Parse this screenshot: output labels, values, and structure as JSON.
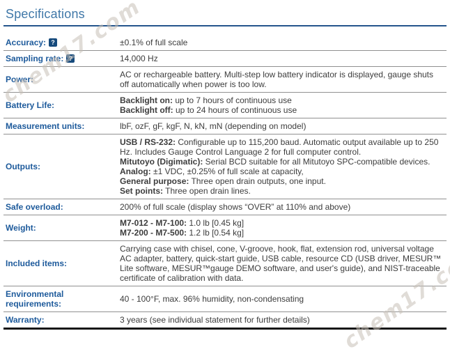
{
  "page": {
    "title": "Specifications"
  },
  "watermark": {
    "text": "chem17.com"
  },
  "help_icon": {
    "glyph": "?"
  },
  "colors": {
    "title_blue": "#4078a8",
    "rule_blue": "#24558c",
    "label_blue": "#1d5a9b",
    "help_icon_blue": "#164a7c",
    "body_text": "#3c3c3c",
    "separator_gray": "#909090",
    "bottom_border_black": "#161616"
  },
  "table": {
    "rows": [
      {
        "label": "Accuracy:",
        "help": true,
        "lines": [
          {
            "bold": "",
            "text": "±0.1% of full scale"
          }
        ]
      },
      {
        "label": "Sampling rate:",
        "help": true,
        "lines": [
          {
            "bold": "",
            "text": "14,000 Hz"
          }
        ]
      },
      {
        "label": "Power:",
        "help": false,
        "lines": [
          {
            "bold": "",
            "text": "AC or rechargeable battery. Multi-step low battery indicator is displayed, gauge shuts off automatically when power is too low."
          }
        ]
      },
      {
        "label": "Battery Life:",
        "help": false,
        "lines": [
          {
            "bold": "Backlight on:",
            "text": " up to 7 hours of continuous use"
          },
          {
            "bold": "Backlight off:",
            "text": " up to 24 hours of continuous use"
          }
        ]
      },
      {
        "label": "Measurement units:",
        "help": false,
        "lines": [
          {
            "bold": "",
            "text": "lbF, ozF, gF, kgF, N, kN, mN (depending on model)"
          }
        ]
      },
      {
        "label": "Outputs:",
        "help": false,
        "lines": [
          {
            "bold": "USB / RS-232:",
            "text": " Configurable up to 115,200 baud. Automatic output available up to 250 Hz. Includes Gauge Control Language 2 for full computer control."
          },
          {
            "bold": "Mitutoyo (Digimatic):",
            "text": " Serial BCD suitable for all Mitutoyo SPC-compatible devices."
          },
          {
            "bold": "Analog:",
            "text": " ±1 VDC, ±0.25% of full scale at capacity,"
          },
          {
            "bold": "General purpose:",
            "text": " Three open drain outputs, one input."
          },
          {
            "bold": "Set points:",
            "text": " Three open drain lines."
          }
        ]
      },
      {
        "label": "Safe overload:",
        "help": false,
        "lines": [
          {
            "bold": "",
            "text": "200% of full scale (display shows “OVER” at 110% and above)"
          }
        ]
      },
      {
        "label": "Weight:",
        "help": false,
        "lines": [
          {
            "bold": "M7-012 - M7-100:",
            "text": " 1.0 lb [0.45 kg]"
          },
          {
            "bold": "M7-200 - M7-500:",
            "text": " 1.2 lb [0.54 kg]"
          }
        ]
      },
      {
        "label": "Included items:",
        "help": false,
        "lines": [
          {
            "bold": "",
            "text": "Carrying case with chisel, cone, V-groove, hook, flat, extension rod, universal voltage AC adapter, battery, quick-start guide, USB cable, resource CD (USB driver, MESUR™ Lite software, MESUR™gauge DEMO software, and user's guide), and NIST-traceable certificate of calibration with data."
          }
        ]
      },
      {
        "label": "Environmental requirements:",
        "help": false,
        "lines": [
          {
            "bold": "",
            "text": "40 - 100°F, max. 96% humidity, non-condensating"
          }
        ]
      },
      {
        "label": "Warranty:",
        "help": false,
        "lines": [
          {
            "bold": "",
            "text": "3 years (see individual statement for further details)"
          }
        ]
      }
    ]
  }
}
